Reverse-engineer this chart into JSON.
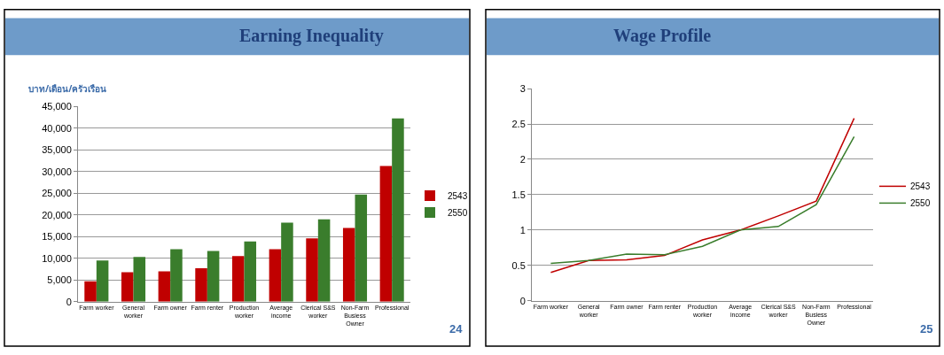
{
  "chart_data": [
    {
      "type": "bar",
      "title": "Earning Inequality",
      "ylabel": "บาท/เดือน/ครัวเรือน",
      "categories": [
        "Farm worker",
        "General worker",
        "Farm owner",
        "Farm renter",
        "Production worker",
        "Average income",
        "Clerical S&S worker",
        "Non-Farm Busiess Owner",
        "Professional"
      ],
      "series": [
        {
          "name": "2543",
          "color": "#c00000",
          "values": [
            4700,
            6800,
            7000,
            7700,
            10500,
            12100,
            14600,
            17000,
            31300
          ]
        },
        {
          "name": "2550",
          "color": "#3a7d2c",
          "values": [
            9500,
            10300,
            12100,
            11700,
            13900,
            18200,
            19000,
            24700,
            42300
          ]
        }
      ],
      "ylim": [
        0,
        45000
      ],
      "yticks": [
        {
          "value": 0,
          "label": "0"
        },
        {
          "value": 5000,
          "label": "5,000"
        },
        {
          "value": 10000,
          "label": "10,000"
        },
        {
          "value": 15000,
          "label": "15,000"
        },
        {
          "value": 20000,
          "label": "20,000"
        },
        {
          "value": 25000,
          "label": "25,000"
        },
        {
          "value": 30000,
          "label": "30,000"
        },
        {
          "value": 35000,
          "label": "35,000"
        },
        {
          "value": 40000,
          "label": "40,000"
        },
        {
          "value": 45000,
          "label": "45,000"
        }
      ],
      "grid": "y",
      "legend": "right",
      "annotations": [
        "24"
      ]
    },
    {
      "type": "line",
      "title": "Wage Profile",
      "categories": [
        "Farm worker",
        "General worker",
        "Farm owner",
        "Farm renter",
        "Production worker",
        "Average income",
        "Clerical S&S worker",
        "Non-Farm Busiess Owner",
        "Professional"
      ],
      "series": [
        {
          "name": "2543",
          "color": "#c00000",
          "values": [
            0.4,
            0.57,
            0.58,
            0.64,
            0.86,
            1.0,
            1.2,
            1.41,
            2.58
          ]
        },
        {
          "name": "2550",
          "color": "#3a7d2c",
          "values": [
            0.53,
            0.57,
            0.66,
            0.65,
            0.77,
            1.0,
            1.05,
            1.36,
            2.32
          ]
        }
      ],
      "ylim": [
        0,
        3
      ],
      "yticks": [
        0,
        0.5,
        1,
        1.5,
        2,
        2.5,
        3
      ],
      "grid": "y",
      "legend": "right",
      "marker": "none",
      "line_style": "solid",
      "annotations": [
        "25"
      ]
    }
  ]
}
